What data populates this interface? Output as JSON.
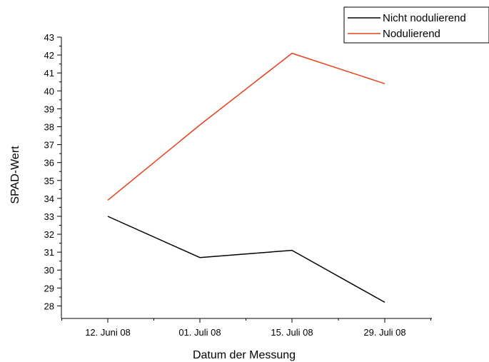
{
  "chart_data": {
    "type": "line",
    "title": "",
    "xlabel": "Datum der Messung",
    "ylabel": "SPAD-Wert",
    "categories": [
      "12. Juni 08",
      "01. Juli 08",
      "15. Juli 08",
      "29. Juli 08"
    ],
    "ylim": [
      27.3,
      43
    ],
    "yticks": [
      28,
      29,
      30,
      31,
      32,
      33,
      34,
      35,
      36,
      37,
      38,
      39,
      40,
      41,
      42,
      43
    ],
    "grid": false,
    "legend_position": "top-right",
    "series": [
      {
        "name": "Nicht nodulierend",
        "color": "#000000",
        "values": [
          33.0,
          30.7,
          31.1,
          28.2
        ]
      },
      {
        "name": "Nodulierend",
        "color": "#e8401c",
        "values": [
          33.9,
          38.1,
          42.1,
          40.4
        ]
      }
    ]
  }
}
